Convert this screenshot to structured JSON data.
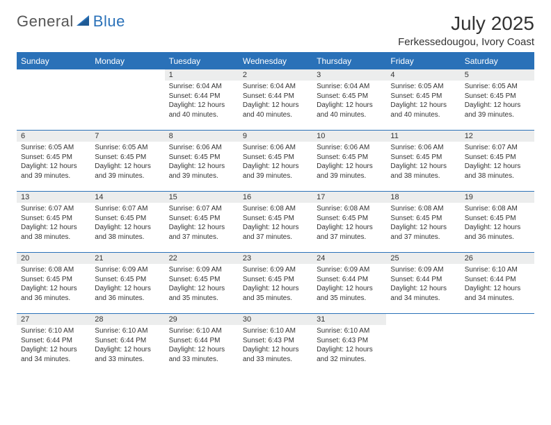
{
  "brand": {
    "general": "General",
    "blue": "Blue"
  },
  "title": "July 2025",
  "location": "Ferkessedougou, Ivory Coast",
  "header_bg": "#2a71b8",
  "header_fg": "#ffffff",
  "daynum_bg": "#eceded",
  "border_color": "#2a71b8",
  "text_color": "#333333",
  "weekdays": [
    "Sunday",
    "Monday",
    "Tuesday",
    "Wednesday",
    "Thursday",
    "Friday",
    "Saturday"
  ],
  "weeks": [
    [
      {
        "n": "",
        "lines": []
      },
      {
        "n": "",
        "lines": []
      },
      {
        "n": "1",
        "lines": [
          "Sunrise: 6:04 AM",
          "Sunset: 6:44 PM",
          "Daylight: 12 hours",
          "and 40 minutes."
        ]
      },
      {
        "n": "2",
        "lines": [
          "Sunrise: 6:04 AM",
          "Sunset: 6:44 PM",
          "Daylight: 12 hours",
          "and 40 minutes."
        ]
      },
      {
        "n": "3",
        "lines": [
          "Sunrise: 6:04 AM",
          "Sunset: 6:45 PM",
          "Daylight: 12 hours",
          "and 40 minutes."
        ]
      },
      {
        "n": "4",
        "lines": [
          "Sunrise: 6:05 AM",
          "Sunset: 6:45 PM",
          "Daylight: 12 hours",
          "and 40 minutes."
        ]
      },
      {
        "n": "5",
        "lines": [
          "Sunrise: 6:05 AM",
          "Sunset: 6:45 PM",
          "Daylight: 12 hours",
          "and 39 minutes."
        ]
      }
    ],
    [
      {
        "n": "6",
        "lines": [
          "Sunrise: 6:05 AM",
          "Sunset: 6:45 PM",
          "Daylight: 12 hours",
          "and 39 minutes."
        ]
      },
      {
        "n": "7",
        "lines": [
          "Sunrise: 6:05 AM",
          "Sunset: 6:45 PM",
          "Daylight: 12 hours",
          "and 39 minutes."
        ]
      },
      {
        "n": "8",
        "lines": [
          "Sunrise: 6:06 AM",
          "Sunset: 6:45 PM",
          "Daylight: 12 hours",
          "and 39 minutes."
        ]
      },
      {
        "n": "9",
        "lines": [
          "Sunrise: 6:06 AM",
          "Sunset: 6:45 PM",
          "Daylight: 12 hours",
          "and 39 minutes."
        ]
      },
      {
        "n": "10",
        "lines": [
          "Sunrise: 6:06 AM",
          "Sunset: 6:45 PM",
          "Daylight: 12 hours",
          "and 39 minutes."
        ]
      },
      {
        "n": "11",
        "lines": [
          "Sunrise: 6:06 AM",
          "Sunset: 6:45 PM",
          "Daylight: 12 hours",
          "and 38 minutes."
        ]
      },
      {
        "n": "12",
        "lines": [
          "Sunrise: 6:07 AM",
          "Sunset: 6:45 PM",
          "Daylight: 12 hours",
          "and 38 minutes."
        ]
      }
    ],
    [
      {
        "n": "13",
        "lines": [
          "Sunrise: 6:07 AM",
          "Sunset: 6:45 PM",
          "Daylight: 12 hours",
          "and 38 minutes."
        ]
      },
      {
        "n": "14",
        "lines": [
          "Sunrise: 6:07 AM",
          "Sunset: 6:45 PM",
          "Daylight: 12 hours",
          "and 38 minutes."
        ]
      },
      {
        "n": "15",
        "lines": [
          "Sunrise: 6:07 AM",
          "Sunset: 6:45 PM",
          "Daylight: 12 hours",
          "and 37 minutes."
        ]
      },
      {
        "n": "16",
        "lines": [
          "Sunrise: 6:08 AM",
          "Sunset: 6:45 PM",
          "Daylight: 12 hours",
          "and 37 minutes."
        ]
      },
      {
        "n": "17",
        "lines": [
          "Sunrise: 6:08 AM",
          "Sunset: 6:45 PM",
          "Daylight: 12 hours",
          "and 37 minutes."
        ]
      },
      {
        "n": "18",
        "lines": [
          "Sunrise: 6:08 AM",
          "Sunset: 6:45 PM",
          "Daylight: 12 hours",
          "and 37 minutes."
        ]
      },
      {
        "n": "19",
        "lines": [
          "Sunrise: 6:08 AM",
          "Sunset: 6:45 PM",
          "Daylight: 12 hours",
          "and 36 minutes."
        ]
      }
    ],
    [
      {
        "n": "20",
        "lines": [
          "Sunrise: 6:08 AM",
          "Sunset: 6:45 PM",
          "Daylight: 12 hours",
          "and 36 minutes."
        ]
      },
      {
        "n": "21",
        "lines": [
          "Sunrise: 6:09 AM",
          "Sunset: 6:45 PM",
          "Daylight: 12 hours",
          "and 36 minutes."
        ]
      },
      {
        "n": "22",
        "lines": [
          "Sunrise: 6:09 AM",
          "Sunset: 6:45 PM",
          "Daylight: 12 hours",
          "and 35 minutes."
        ]
      },
      {
        "n": "23",
        "lines": [
          "Sunrise: 6:09 AM",
          "Sunset: 6:45 PM",
          "Daylight: 12 hours",
          "and 35 minutes."
        ]
      },
      {
        "n": "24",
        "lines": [
          "Sunrise: 6:09 AM",
          "Sunset: 6:44 PM",
          "Daylight: 12 hours",
          "and 35 minutes."
        ]
      },
      {
        "n": "25",
        "lines": [
          "Sunrise: 6:09 AM",
          "Sunset: 6:44 PM",
          "Daylight: 12 hours",
          "and 34 minutes."
        ]
      },
      {
        "n": "26",
        "lines": [
          "Sunrise: 6:10 AM",
          "Sunset: 6:44 PM",
          "Daylight: 12 hours",
          "and 34 minutes."
        ]
      }
    ],
    [
      {
        "n": "27",
        "lines": [
          "Sunrise: 6:10 AM",
          "Sunset: 6:44 PM",
          "Daylight: 12 hours",
          "and 34 minutes."
        ]
      },
      {
        "n": "28",
        "lines": [
          "Sunrise: 6:10 AM",
          "Sunset: 6:44 PM",
          "Daylight: 12 hours",
          "and 33 minutes."
        ]
      },
      {
        "n": "29",
        "lines": [
          "Sunrise: 6:10 AM",
          "Sunset: 6:44 PM",
          "Daylight: 12 hours",
          "and 33 minutes."
        ]
      },
      {
        "n": "30",
        "lines": [
          "Sunrise: 6:10 AM",
          "Sunset: 6:43 PM",
          "Daylight: 12 hours",
          "and 33 minutes."
        ]
      },
      {
        "n": "31",
        "lines": [
          "Sunrise: 6:10 AM",
          "Sunset: 6:43 PM",
          "Daylight: 12 hours",
          "and 32 minutes."
        ]
      },
      {
        "n": "",
        "lines": []
      },
      {
        "n": "",
        "lines": []
      }
    ]
  ]
}
